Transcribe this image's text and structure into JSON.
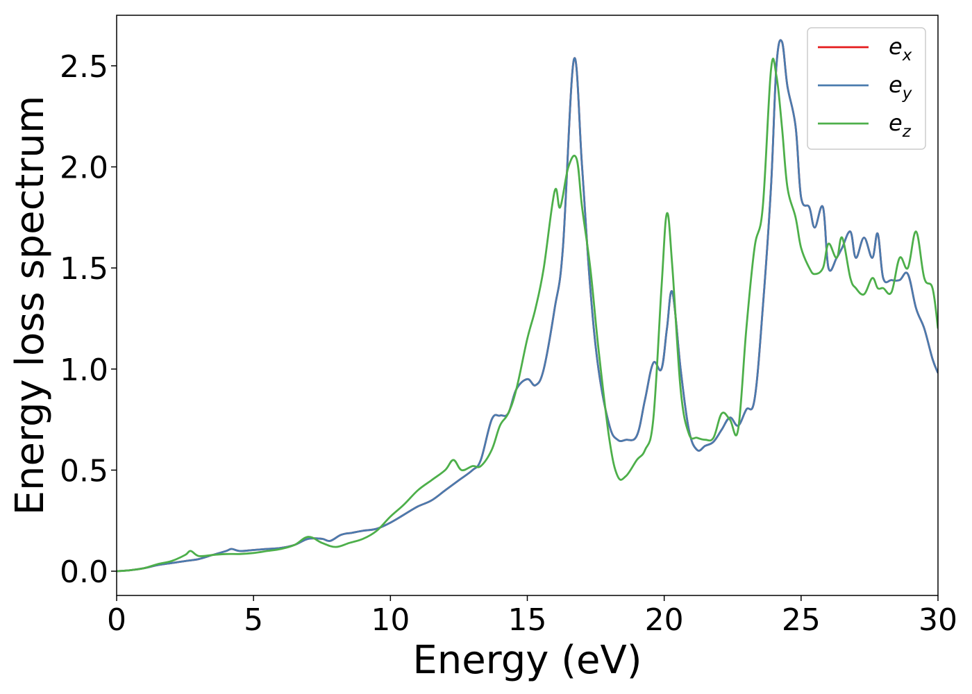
{
  "chart_data": {
    "type": "line",
    "xlabel": "Energy (eV)",
    "ylabel": "Energy loss spectrum",
    "xlim": [
      0,
      30
    ],
    "ylim": [
      -0.12,
      2.75
    ],
    "xticks": [
      0,
      5,
      10,
      15,
      20,
      25,
      30
    ],
    "xtick_labels": [
      "0",
      "5",
      "10",
      "15",
      "20",
      "25",
      "30"
    ],
    "yticks": [
      0.0,
      0.5,
      1.0,
      1.5,
      2.0,
      2.5
    ],
    "ytick_labels": [
      "0.0",
      "0.5",
      "1.0",
      "1.5",
      "2.0",
      "2.5"
    ],
    "grid": false,
    "legend_position": "top-right",
    "series": [
      {
        "name": "e_x",
        "label_main": "e",
        "label_sub": "x",
        "color": "#e41a1c",
        "x": [
          0,
          0.5,
          1,
          1.5,
          2,
          2.5,
          3,
          3.5,
          4,
          4.2,
          4.5,
          5,
          5.5,
          6,
          6.5,
          7,
          7.5,
          7.8,
          8.2,
          8.6,
          9,
          9.5,
          10,
          10.5,
          11,
          11.5,
          12,
          12.5,
          13,
          13.3,
          13.7,
          14,
          14.3,
          14.6,
          15,
          15.3,
          15.6,
          16,
          16.3,
          16.7,
          17,
          17.3,
          17.6,
          18,
          18.3,
          18.6,
          19,
          19.3,
          19.6,
          19.9,
          20.1,
          20.3,
          20.6,
          20.9,
          21.2,
          21.5,
          21.8,
          22.1,
          22.4,
          22.7,
          23,
          23.3,
          23.6,
          23.9,
          24.1,
          24.3,
          24.5,
          24.8,
          25,
          25.3,
          25.5,
          25.8,
          26,
          26.3,
          26.5,
          26.8,
          27,
          27.3,
          27.6,
          27.8,
          28,
          28.3,
          28.6,
          28.9,
          29.2,
          29.5,
          29.8,
          30
        ],
        "values": [
          0,
          0.005,
          0.015,
          0.03,
          0.04,
          0.05,
          0.06,
          0.08,
          0.1,
          0.11,
          0.1,
          0.105,
          0.11,
          0.115,
          0.13,
          0.16,
          0.16,
          0.15,
          0.18,
          0.19,
          0.2,
          0.21,
          0.24,
          0.28,
          0.32,
          0.35,
          0.4,
          0.45,
          0.5,
          0.55,
          0.75,
          0.77,
          0.78,
          0.9,
          0.95,
          0.92,
          1.0,
          1.3,
          1.6,
          2.53,
          2.0,
          1.4,
          1.0,
          0.72,
          0.65,
          0.65,
          0.67,
          0.85,
          1.03,
          1.0,
          1.2,
          1.38,
          1.0,
          0.7,
          0.6,
          0.62,
          0.64,
          0.7,
          0.76,
          0.72,
          0.8,
          0.85,
          1.3,
          1.9,
          2.5,
          2.62,
          2.4,
          2.2,
          1.85,
          1.8,
          1.7,
          1.8,
          1.5,
          1.55,
          1.6,
          1.68,
          1.55,
          1.65,
          1.55,
          1.67,
          1.45,
          1.44,
          1.44,
          1.47,
          1.3,
          1.2,
          1.05,
          0.98
        ]
      },
      {
        "name": "e_y",
        "label_main": "e",
        "label_sub": "y",
        "color": "#4a7bae",
        "x": [
          0,
          0.5,
          1,
          1.5,
          2,
          2.5,
          3,
          3.5,
          4,
          4.2,
          4.5,
          5,
          5.5,
          6,
          6.5,
          7,
          7.5,
          7.8,
          8.2,
          8.6,
          9,
          9.5,
          10,
          10.5,
          11,
          11.5,
          12,
          12.5,
          13,
          13.3,
          13.7,
          14,
          14.3,
          14.6,
          15,
          15.3,
          15.6,
          16,
          16.3,
          16.7,
          17,
          17.3,
          17.6,
          18,
          18.3,
          18.6,
          19,
          19.3,
          19.6,
          19.9,
          20.1,
          20.3,
          20.6,
          20.9,
          21.2,
          21.5,
          21.8,
          22.1,
          22.4,
          22.7,
          23,
          23.3,
          23.6,
          23.9,
          24.1,
          24.3,
          24.5,
          24.8,
          25,
          25.3,
          25.5,
          25.8,
          26,
          26.3,
          26.5,
          26.8,
          27,
          27.3,
          27.6,
          27.8,
          28,
          28.3,
          28.6,
          28.9,
          29.2,
          29.5,
          29.8,
          30
        ],
        "values": [
          0,
          0.005,
          0.015,
          0.03,
          0.04,
          0.05,
          0.06,
          0.08,
          0.1,
          0.11,
          0.1,
          0.105,
          0.11,
          0.115,
          0.13,
          0.16,
          0.16,
          0.15,
          0.18,
          0.19,
          0.2,
          0.21,
          0.24,
          0.28,
          0.32,
          0.35,
          0.4,
          0.45,
          0.5,
          0.55,
          0.75,
          0.77,
          0.78,
          0.9,
          0.95,
          0.92,
          1.0,
          1.3,
          1.6,
          2.53,
          2.0,
          1.4,
          1.0,
          0.72,
          0.65,
          0.65,
          0.67,
          0.85,
          1.03,
          1.0,
          1.2,
          1.38,
          1.0,
          0.7,
          0.6,
          0.62,
          0.64,
          0.7,
          0.76,
          0.72,
          0.8,
          0.85,
          1.3,
          1.9,
          2.5,
          2.62,
          2.4,
          2.2,
          1.85,
          1.8,
          1.7,
          1.8,
          1.5,
          1.55,
          1.6,
          1.68,
          1.55,
          1.65,
          1.55,
          1.67,
          1.45,
          1.44,
          1.44,
          1.47,
          1.3,
          1.2,
          1.05,
          0.98
        ]
      },
      {
        "name": "e_z",
        "label_main": "e",
        "label_sub": "z",
        "color": "#4daf4a",
        "x": [
          0,
          0.5,
          1,
          1.5,
          2,
          2.5,
          2.7,
          3,
          3.5,
          4,
          4.5,
          5,
          5.5,
          6,
          6.5,
          7,
          7.5,
          8,
          8.5,
          9,
          9.5,
          10,
          10.5,
          11,
          11.5,
          12,
          12.3,
          12.6,
          13,
          13.3,
          13.7,
          14,
          14.3,
          14.6,
          15,
          15.3,
          15.6,
          16,
          16.2,
          16.5,
          16.8,
          17,
          17.3,
          17.6,
          18,
          18.3,
          18.6,
          19,
          19.3,
          19.6,
          19.9,
          20.1,
          20.3,
          20.6,
          20.9,
          21.2,
          21.5,
          21.8,
          22.1,
          22.4,
          22.7,
          23,
          23.3,
          23.6,
          23.9,
          24.1,
          24.3,
          24.5,
          24.8,
          25,
          25.3,
          25.5,
          25.8,
          26,
          26.3,
          26.5,
          26.8,
          27,
          27.3,
          27.6,
          27.8,
          28,
          28.3,
          28.6,
          28.9,
          29.2,
          29.5,
          29.8,
          30
        ],
        "values": [
          0,
          0.005,
          0.015,
          0.035,
          0.05,
          0.08,
          0.1,
          0.075,
          0.08,
          0.085,
          0.085,
          0.09,
          0.1,
          0.11,
          0.13,
          0.17,
          0.14,
          0.12,
          0.14,
          0.16,
          0.2,
          0.27,
          0.33,
          0.4,
          0.45,
          0.5,
          0.55,
          0.5,
          0.52,
          0.52,
          0.6,
          0.72,
          0.78,
          0.9,
          1.15,
          1.3,
          1.5,
          1.88,
          1.8,
          2.0,
          2.04,
          1.8,
          1.5,
          1.1,
          0.65,
          0.47,
          0.47,
          0.55,
          0.6,
          0.75,
          1.4,
          1.77,
          1.5,
          0.9,
          0.68,
          0.66,
          0.65,
          0.66,
          0.78,
          0.75,
          0.7,
          1.2,
          1.6,
          1.8,
          2.48,
          2.45,
          2.2,
          1.9,
          1.75,
          1.6,
          1.5,
          1.47,
          1.5,
          1.62,
          1.55,
          1.65,
          1.45,
          1.4,
          1.37,
          1.45,
          1.4,
          1.4,
          1.38,
          1.55,
          1.5,
          1.68,
          1.45,
          1.4,
          1.2
        ]
      }
    ]
  }
}
